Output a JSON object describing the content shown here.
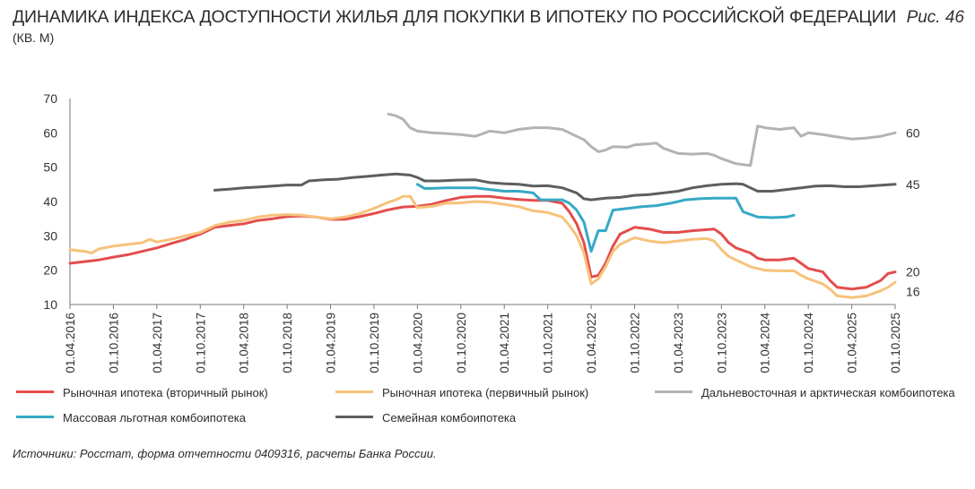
{
  "header": {
    "title": "ДИНАМИКА ИНДЕКСА ДОСТУПНОСТИ ЖИЛЬЯ ДЛЯ ПОКУПКИ В ИПОТЕКУ ПО РОССИЙСКОЙ ФЕДЕРАЦИИ",
    "subtitle": "(КВ. М)",
    "figure_label": "Рис. 46"
  },
  "source": "Источники: Росстат, форма отчетности 0409316, расчеты Банка России.",
  "chart_data": {
    "type": "line",
    "ylim": [
      10,
      70
    ],
    "yticks": [
      10,
      20,
      30,
      40,
      50,
      60,
      70
    ],
    "xlim": [
      "2016-04",
      "2025-10"
    ],
    "xtick_labels": [
      "01.04.2016",
      "01.10.2016",
      "01.04.2017",
      "01.10.2017",
      "01.04.2018",
      "01.10.2018",
      "01.04.2019",
      "01.10.2019",
      "01.04.2020",
      "01.10.2020",
      "01.04.2021",
      "01.10.2021",
      "01.04.2022",
      "01.10.2022",
      "01.04.2023",
      "01.10.2023",
      "01.04.2024",
      "01.10.2024",
      "01.04.2025",
      "01.10.2025"
    ],
    "grid": false,
    "legend_position": "bottom",
    "series": [
      {
        "name": "Рыночная ипотека (вторичный рынок)",
        "color": "#e34d4d",
        "end_label": "20",
        "points": [
          [
            "2016-04",
            22.0
          ],
          [
            "2016-06",
            22.5
          ],
          [
            "2016-08",
            23.0
          ],
          [
            "2016-10",
            23.8
          ],
          [
            "2016-12",
            24.5
          ],
          [
            "2017-02",
            25.5
          ],
          [
            "2017-04",
            26.5
          ],
          [
            "2017-06",
            27.8
          ],
          [
            "2017-08",
            29.0
          ],
          [
            "2017-10",
            30.5
          ],
          [
            "2017-12",
            32.5
          ],
          [
            "2018-02",
            33.0
          ],
          [
            "2018-04",
            33.5
          ],
          [
            "2018-06",
            34.5
          ],
          [
            "2018-08",
            35.0
          ],
          [
            "2018-10",
            35.6
          ],
          [
            "2018-12",
            35.8
          ],
          [
            "2019-02",
            35.5
          ],
          [
            "2019-04",
            34.8
          ],
          [
            "2019-06",
            34.8
          ],
          [
            "2019-08",
            35.6
          ],
          [
            "2019-10",
            36.5
          ],
          [
            "2019-12",
            37.6
          ],
          [
            "2020-02",
            38.4
          ],
          [
            "2020-04",
            38.6
          ],
          [
            "2020-06",
            39.2
          ],
          [
            "2020-08",
            40.3
          ],
          [
            "2020-10",
            41.2
          ],
          [
            "2020-12",
            41.5
          ],
          [
            "2021-02",
            41.5
          ],
          [
            "2021-04",
            41.0
          ],
          [
            "2021-06",
            40.6
          ],
          [
            "2021-08",
            40.3
          ],
          [
            "2021-10",
            40.3
          ],
          [
            "2021-12",
            39.5
          ],
          [
            "2022-01",
            37.0
          ],
          [
            "2022-02",
            33.5
          ],
          [
            "2022-03",
            28.0
          ],
          [
            "2022-04",
            18.0
          ],
          [
            "2022-05",
            18.5
          ],
          [
            "2022-06",
            22.0
          ],
          [
            "2022-07",
            27.0
          ],
          [
            "2022-08",
            30.5
          ],
          [
            "2022-10",
            32.5
          ],
          [
            "2022-12",
            32.0
          ],
          [
            "2023-02",
            31.0
          ],
          [
            "2023-04",
            31.0
          ],
          [
            "2023-06",
            31.5
          ],
          [
            "2023-08",
            31.8
          ],
          [
            "2023-09",
            32.0
          ],
          [
            "2023-10",
            30.5
          ],
          [
            "2023-11",
            28.0
          ],
          [
            "2023-12",
            26.5
          ],
          [
            "2024-02",
            25.0
          ],
          [
            "2024-03",
            23.5
          ],
          [
            "2024-04",
            23.0
          ],
          [
            "2024-06",
            23.0
          ],
          [
            "2024-08",
            23.5
          ],
          [
            "2024-09",
            22.0
          ],
          [
            "2024-10",
            20.5
          ],
          [
            "2024-12",
            19.5
          ],
          [
            "2025-01",
            17.0
          ],
          [
            "2025-02",
            15.0
          ],
          [
            "2025-04",
            14.5
          ],
          [
            "2025-06",
            15.0
          ],
          [
            "2025-08",
            17.0
          ],
          [
            "2025-09",
            19.0
          ],
          [
            "2025-10",
            19.5
          ]
        ]
      },
      {
        "name": "Рыночная ипотека (первичный рынок)",
        "color": "#f7c27a",
        "end_label": "16",
        "points": [
          [
            "2016-04",
            26.0
          ],
          [
            "2016-06",
            25.5
          ],
          [
            "2016-07",
            25.0
          ],
          [
            "2016-08",
            26.2
          ],
          [
            "2016-10",
            27.0
          ],
          [
            "2016-12",
            27.5
          ],
          [
            "2017-02",
            28.0
          ],
          [
            "2017-03",
            29.0
          ],
          [
            "2017-04",
            28.2
          ],
          [
            "2017-06",
            29.0
          ],
          [
            "2017-08",
            30.0
          ],
          [
            "2017-10",
            31.0
          ],
          [
            "2017-12",
            33.0
          ],
          [
            "2018-02",
            34.0
          ],
          [
            "2018-04",
            34.5
          ],
          [
            "2018-06",
            35.5
          ],
          [
            "2018-08",
            36.0
          ],
          [
            "2018-10",
            36.2
          ],
          [
            "2018-12",
            36.0
          ],
          [
            "2019-02",
            35.5
          ],
          [
            "2019-04",
            35.0
          ],
          [
            "2019-06",
            35.5
          ],
          [
            "2019-08",
            36.5
          ],
          [
            "2019-10",
            38.0
          ],
          [
            "2019-12",
            39.8
          ],
          [
            "2020-01",
            40.5
          ],
          [
            "2020-02",
            41.5
          ],
          [
            "2020-03",
            41.5
          ],
          [
            "2020-04",
            38.2
          ],
          [
            "2020-06",
            38.6
          ],
          [
            "2020-08",
            39.5
          ],
          [
            "2020-10",
            39.6
          ],
          [
            "2020-12",
            40.0
          ],
          [
            "2021-02",
            39.8
          ],
          [
            "2021-04",
            39.2
          ],
          [
            "2021-06",
            38.5
          ],
          [
            "2021-08",
            37.3
          ],
          [
            "2021-10",
            36.8
          ],
          [
            "2021-12",
            35.5
          ],
          [
            "2022-01",
            33.0
          ],
          [
            "2022-02",
            30.0
          ],
          [
            "2022-03",
            25.0
          ],
          [
            "2022-04",
            16.0
          ],
          [
            "2022-05",
            17.5
          ],
          [
            "2022-06",
            21.0
          ],
          [
            "2022-07",
            25.5
          ],
          [
            "2022-08",
            27.5
          ],
          [
            "2022-10",
            29.5
          ],
          [
            "2022-12",
            28.5
          ],
          [
            "2023-02",
            28.0
          ],
          [
            "2023-04",
            28.5
          ],
          [
            "2023-06",
            29.0
          ],
          [
            "2023-08",
            29.2
          ],
          [
            "2023-09",
            28.5
          ],
          [
            "2023-10",
            26.0
          ],
          [
            "2023-11",
            24.0
          ],
          [
            "2023-12",
            23.0
          ],
          [
            "2024-02",
            21.0
          ],
          [
            "2024-04",
            20.0
          ],
          [
            "2024-06",
            19.8
          ],
          [
            "2024-08",
            19.8
          ],
          [
            "2024-09",
            18.5
          ],
          [
            "2024-10",
            17.5
          ],
          [
            "2024-12",
            16.0
          ],
          [
            "2025-01",
            14.5
          ],
          [
            "2025-02",
            12.5
          ],
          [
            "2025-04",
            12.0
          ],
          [
            "2025-06",
            12.5
          ],
          [
            "2025-08",
            14.0
          ],
          [
            "2025-09",
            15.0
          ],
          [
            "2025-10",
            16.5
          ]
        ]
      },
      {
        "name": "Дальневосточная и арктическая комбоипотека",
        "color": "#b3b3b3",
        "end_label": "60",
        "points": [
          [
            "2019-12",
            65.5
          ],
          [
            "2020-01",
            65.0
          ],
          [
            "2020-02",
            64.0
          ],
          [
            "2020-03",
            61.5
          ],
          [
            "2020-04",
            60.5
          ],
          [
            "2020-06",
            60.0
          ],
          [
            "2020-08",
            59.8
          ],
          [
            "2020-10",
            59.5
          ],
          [
            "2020-12",
            59.0
          ],
          [
            "2021-02",
            60.5
          ],
          [
            "2021-04",
            60.0
          ],
          [
            "2021-06",
            61.0
          ],
          [
            "2021-08",
            61.5
          ],
          [
            "2021-10",
            61.5
          ],
          [
            "2021-12",
            61.0
          ],
          [
            "2022-01",
            60.0
          ],
          [
            "2022-02",
            59.0
          ],
          [
            "2022-03",
            58.0
          ],
          [
            "2022-04",
            56.0
          ],
          [
            "2022-05",
            54.5
          ],
          [
            "2022-06",
            55.0
          ],
          [
            "2022-07",
            56.0
          ],
          [
            "2022-09",
            55.8
          ],
          [
            "2022-10",
            56.5
          ],
          [
            "2022-12",
            56.8
          ],
          [
            "2023-01",
            57.0
          ],
          [
            "2023-02",
            55.5
          ],
          [
            "2023-04",
            54.0
          ],
          [
            "2023-06",
            53.8
          ],
          [
            "2023-08",
            54.0
          ],
          [
            "2023-09",
            53.5
          ],
          [
            "2023-10",
            52.5
          ],
          [
            "2023-12",
            51.0
          ],
          [
            "2024-02",
            50.5
          ],
          [
            "2024-03",
            62.0
          ],
          [
            "2024-04",
            61.5
          ],
          [
            "2024-06",
            61.0
          ],
          [
            "2024-08",
            61.5
          ],
          [
            "2024-09",
            59.0
          ],
          [
            "2024-10",
            60.0
          ],
          [
            "2024-12",
            59.5
          ],
          [
            "2025-02",
            58.8
          ],
          [
            "2025-04",
            58.2
          ],
          [
            "2025-06",
            58.5
          ],
          [
            "2025-08",
            59.0
          ],
          [
            "2025-10",
            60.0
          ]
        ]
      },
      {
        "name": "Массовая льготная комбоипотека",
        "color": "#35a9c6",
        "end_label": "",
        "points": [
          [
            "2020-04",
            45.0
          ],
          [
            "2020-05",
            43.8
          ],
          [
            "2020-06",
            43.8
          ],
          [
            "2020-08",
            44.0
          ],
          [
            "2020-10",
            44.0
          ],
          [
            "2020-12",
            44.0
          ],
          [
            "2021-02",
            43.5
          ],
          [
            "2021-04",
            43.0
          ],
          [
            "2021-06",
            43.0
          ],
          [
            "2021-08",
            42.5
          ],
          [
            "2021-09",
            40.5
          ],
          [
            "2021-10",
            40.5
          ],
          [
            "2021-12",
            40.5
          ],
          [
            "2022-01",
            39.5
          ],
          [
            "2022-02",
            37.5
          ],
          [
            "2022-03",
            34.0
          ],
          [
            "2022-04",
            25.5
          ],
          [
            "2022-05",
            31.5
          ],
          [
            "2022-06",
            31.5
          ],
          [
            "2022-07",
            37.5
          ],
          [
            "2022-09",
            38.0
          ],
          [
            "2022-11",
            38.5
          ],
          [
            "2023-01",
            38.8
          ],
          [
            "2023-03",
            39.5
          ],
          [
            "2023-05",
            40.5
          ],
          [
            "2023-07",
            40.8
          ],
          [
            "2023-09",
            41.0
          ],
          [
            "2023-12",
            41.0
          ],
          [
            "2024-01",
            37.0
          ],
          [
            "2024-03",
            35.5
          ],
          [
            "2024-05",
            35.3
          ],
          [
            "2024-07",
            35.5
          ],
          [
            "2024-08",
            36.0
          ]
        ]
      },
      {
        "name": "Семейная комбоипотека",
        "color": "#5e5e5e",
        "end_label": "45",
        "points": [
          [
            "2017-12",
            43.3
          ],
          [
            "2018-02",
            43.6
          ],
          [
            "2018-04",
            44.0
          ],
          [
            "2018-06",
            44.2
          ],
          [
            "2018-08",
            44.5
          ],
          [
            "2018-10",
            44.8
          ],
          [
            "2018-12",
            44.8
          ],
          [
            "2019-01",
            46.0
          ],
          [
            "2019-03",
            46.3
          ],
          [
            "2019-05",
            46.5
          ],
          [
            "2019-07",
            47.0
          ],
          [
            "2019-09",
            47.3
          ],
          [
            "2019-11",
            47.7
          ],
          [
            "2020-01",
            48.0
          ],
          [
            "2020-03",
            47.7
          ],
          [
            "2020-04",
            47.0
          ],
          [
            "2020-05",
            46.0
          ],
          [
            "2020-07",
            46.0
          ],
          [
            "2020-09",
            46.2
          ],
          [
            "2020-12",
            46.3
          ],
          [
            "2021-02",
            45.5
          ],
          [
            "2021-04",
            45.2
          ],
          [
            "2021-06",
            45.0
          ],
          [
            "2021-08",
            44.5
          ],
          [
            "2021-10",
            44.6
          ],
          [
            "2021-12",
            44.0
          ],
          [
            "2022-02",
            42.5
          ],
          [
            "2022-03",
            40.8
          ],
          [
            "2022-04",
            40.5
          ],
          [
            "2022-06",
            41.0
          ],
          [
            "2022-08",
            41.2
          ],
          [
            "2022-10",
            41.8
          ],
          [
            "2022-12",
            42.0
          ],
          [
            "2023-02",
            42.5
          ],
          [
            "2023-04",
            43.0
          ],
          [
            "2023-06",
            44.0
          ],
          [
            "2023-08",
            44.6
          ],
          [
            "2023-10",
            45.0
          ],
          [
            "2023-12",
            45.2
          ],
          [
            "2024-01",
            45.0
          ],
          [
            "2024-02",
            44.0
          ],
          [
            "2024-03",
            43.0
          ],
          [
            "2024-05",
            43.0
          ],
          [
            "2024-07",
            43.5
          ],
          [
            "2024-09",
            44.0
          ],
          [
            "2024-11",
            44.5
          ],
          [
            "2025-01",
            44.6
          ],
          [
            "2025-03",
            44.3
          ],
          [
            "2025-05",
            44.3
          ],
          [
            "2025-07",
            44.6
          ],
          [
            "2025-10",
            45.0
          ]
        ]
      }
    ]
  }
}
